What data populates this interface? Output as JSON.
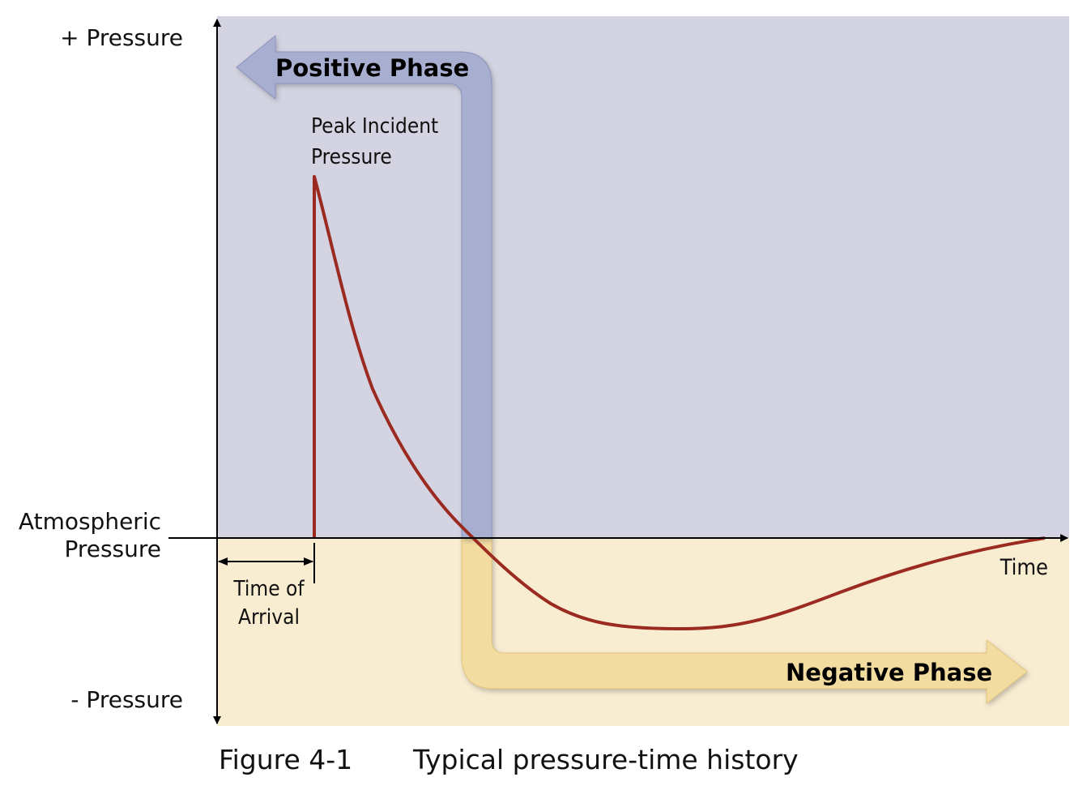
{
  "labels": {
    "y_top": "+ Pressure",
    "y_bottom": "- Pressure",
    "baseline_line1": "Atmospheric",
    "baseline_line2": "Pressure",
    "x_axis": "Time",
    "positive_phase": "Positive Phase",
    "negative_phase": "Negative Phase",
    "peak_line1": "Peak Incident",
    "peak_line2": "Pressure",
    "arrival_line1": "Time of",
    "arrival_line2": "Arrival"
  },
  "caption": {
    "figure_number": "Figure 4-1",
    "title": "Typical pressure-time history"
  },
  "colors": {
    "positive_region": "#d3d3e2",
    "negative_region": "#f8ecd1",
    "positive_arrow": "#a7aed0",
    "negative_arrow": "#f3dca0",
    "curve": "#9b2a20",
    "axis": "#000000"
  }
}
